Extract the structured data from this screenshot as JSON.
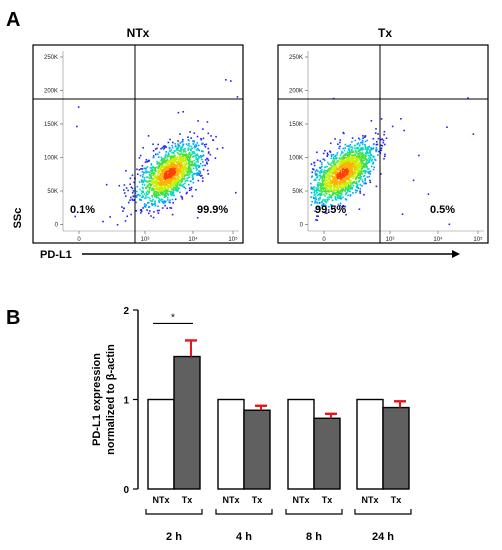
{
  "panel_a": {
    "letter": "A",
    "x_axis_label": "PD-L1",
    "y_axis_label": "SSc",
    "plots": [
      {
        "title": "NTx",
        "lower_left_percent": "0.1%",
        "lower_right_percent": "99.9%",
        "population": "right"
      },
      {
        "title": "Tx",
        "lower_left_percent": "99.5%",
        "lower_right_percent": "0.5%",
        "population": "left"
      }
    ],
    "y_ticks": [
      "250K",
      "200K",
      "150K",
      "100K",
      "50K",
      "0"
    ],
    "x_ticks": [
      "0",
      "10³",
      "10⁴",
      "10⁵"
    ]
  },
  "chart_data": {
    "type": "bar",
    "panel_letter": "B",
    "ylabel": [
      "PD-L1 expression",
      "normalized to β-actin"
    ],
    "ylim": [
      0,
      2
    ],
    "y_ticks": [
      "0",
      "1",
      "2"
    ],
    "groups": [
      "2 h",
      "4 h",
      "8 h",
      "24 h"
    ],
    "series": [
      {
        "name": "NTx",
        "values": [
          1,
          1,
          1,
          1
        ],
        "errors": [
          0,
          0,
          0,
          0
        ],
        "fill": "#ffffff"
      },
      {
        "name": "Tx",
        "values": [
          1.48,
          0.88,
          0.79,
          0.91
        ],
        "errors": [
          0.18,
          0.05,
          0.05,
          0.07
        ],
        "fill": "#606060"
      }
    ],
    "significance": {
      "group": "2 h",
      "label": "*"
    },
    "error_bar_color": "#e8141b",
    "grid": false
  }
}
